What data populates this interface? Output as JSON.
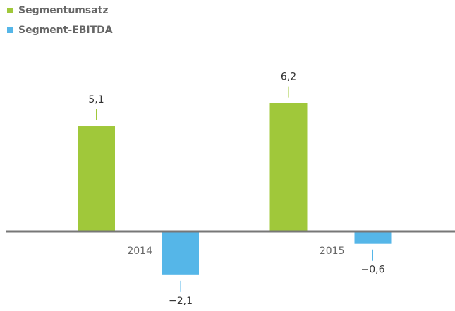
{
  "chart_data": {
    "type": "bar",
    "categories": [
      "2014",
      "2015"
    ],
    "series": [
      {
        "name": "Segmentumsatz",
        "color": "#a0c83a",
        "values": [
          5.1,
          6.2
        ],
        "value_labels": [
          "5,1",
          "6,2"
        ]
      },
      {
        "name": "Segment-EBITDA",
        "color": "#55b6e8",
        "values": [
          -2.1,
          -0.6
        ],
        "value_labels": [
          "−2,1",
          "−0,6"
        ]
      }
    ],
    "ylim": [
      -3.5,
      8.5
    ],
    "legend": "top-left"
  }
}
